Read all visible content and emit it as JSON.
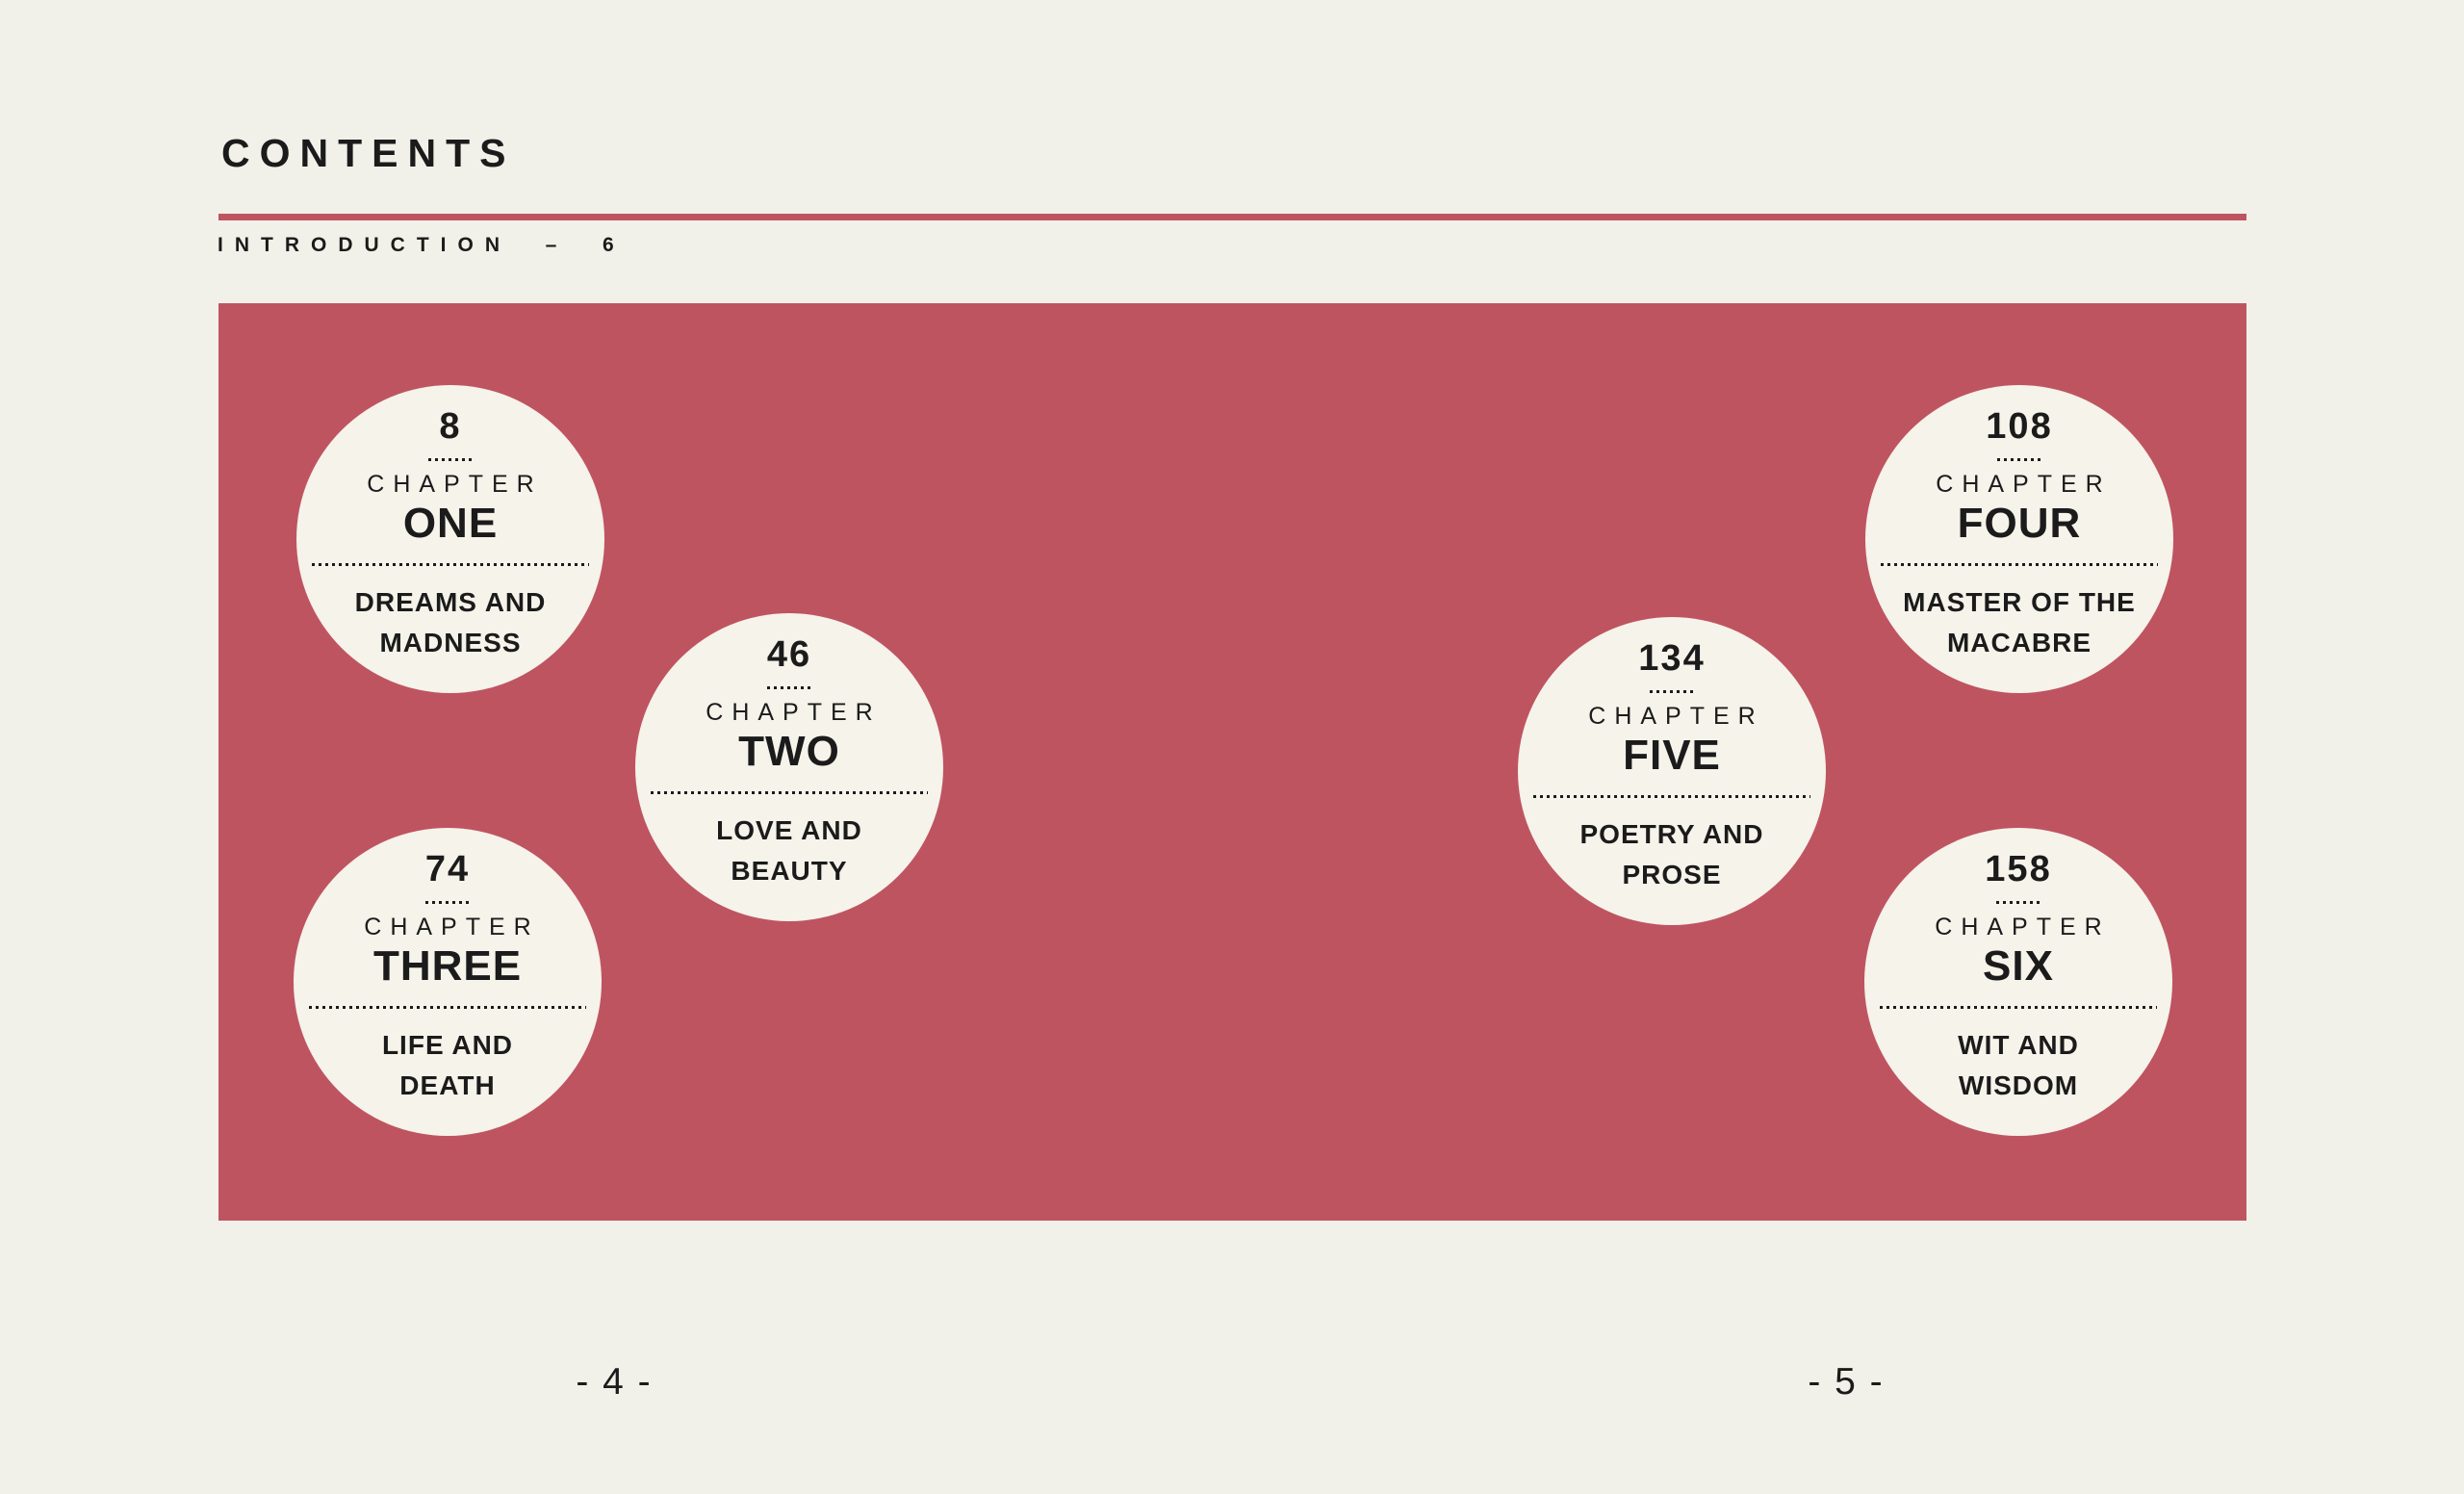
{
  "page": {
    "title": "CONTENTS",
    "intro_line": "INTRODUCTION  –  6",
    "left_page_number": "- 4 -",
    "right_page_number": "- 5 -"
  },
  "colors": {
    "background": "#f2f1e9",
    "accent_red": "#bf5461",
    "circle_fill": "#f5f3ea",
    "text": "#1b1b1b"
  },
  "chapters": [
    {
      "page": "8",
      "label": "CHAPTER",
      "number_word": "ONE",
      "title_line1": "DREAMS AND",
      "title_line2": "MADNESS"
    },
    {
      "page": "46",
      "label": "CHAPTER",
      "number_word": "TWO",
      "title_line1": "LOVE AND",
      "title_line2": "BEAUTY"
    },
    {
      "page": "74",
      "label": "CHAPTER",
      "number_word": "THREE",
      "title_line1": "LIFE AND",
      "title_line2": "DEATH"
    },
    {
      "page": "108",
      "label": "CHAPTER",
      "number_word": "FOUR",
      "title_line1": "MASTER OF THE",
      "title_line2": "MACABRE"
    },
    {
      "page": "134",
      "label": "CHAPTER",
      "number_word": "FIVE",
      "title_line1": "POETRY AND",
      "title_line2": "PROSE"
    },
    {
      "page": "158",
      "label": "CHAPTER",
      "number_word": "SIX",
      "title_line1": "WIT AND",
      "title_line2": "WISDOM"
    }
  ]
}
